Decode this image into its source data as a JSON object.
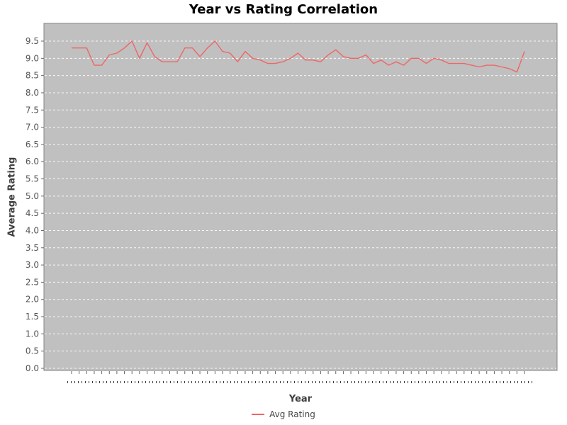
{
  "title": "Year vs Rating Correlation",
  "axes": {
    "x_label": "Year",
    "y_label": "Average Rating",
    "y_tick_labels": [
      "0.0",
      "0.5",
      "1.0",
      "1.5",
      "2.0",
      "2.5",
      "3.0",
      "3.5",
      "4.0",
      "4.5",
      "5.0",
      "5.5",
      "6.0",
      "6.5",
      "7.0",
      "7.5",
      "8.0",
      "8.5",
      "9.0",
      "9.5"
    ],
    "x_tick_labels_note": "61 category tick labels present but illegible (rendered as tiny dots below the axis)"
  },
  "legend": {
    "items": [
      {
        "label": "Avg Rating",
        "color": "#ee6666"
      }
    ]
  },
  "colors": {
    "plot_background": "#c0c0c0",
    "plot_border": "#848484",
    "gridline": "#ffffff",
    "series_line": "#ee6666",
    "tick_mark": "#666666",
    "tick_text": "#555555",
    "axis_label_text": "#3f3f3f",
    "title_text": "#000000",
    "page_background": "#ffffff"
  },
  "chart_data": {
    "type": "line",
    "title": "Year vs Rating Correlation",
    "xlabel": "Year",
    "ylabel": "Average Rating",
    "ylim": [
      0.0,
      10.0
    ],
    "y_tick_step": 0.5,
    "grid": "horizontal white dashed gridlines on gray plot background",
    "legend_position": "bottom-center",
    "x_categories_count": 61,
    "x_tick_labels": "illegible (dots)",
    "series": [
      {
        "name": "Avg Rating",
        "values": [
          9.3,
          9.3,
          9.3,
          8.8,
          8.8,
          9.1,
          9.15,
          9.3,
          9.5,
          9.0,
          9.45,
          9.05,
          8.9,
          8.9,
          8.9,
          9.3,
          9.3,
          9.05,
          9.3,
          9.5,
          9.2,
          9.15,
          8.9,
          9.2,
          9.0,
          8.95,
          8.85,
          8.85,
          8.9,
          9.0,
          9.15,
          8.95,
          8.95,
          8.9,
          9.1,
          9.25,
          9.05,
          9.0,
          9.0,
          9.1,
          8.85,
          8.95,
          8.8,
          8.9,
          8.8,
          9.0,
          9.0,
          8.85,
          9.0,
          8.95,
          8.85,
          8.85,
          8.85,
          8.8,
          8.75,
          8.8,
          8.8,
          8.75,
          8.7,
          8.6,
          9.2
        ]
      }
    ]
  }
}
